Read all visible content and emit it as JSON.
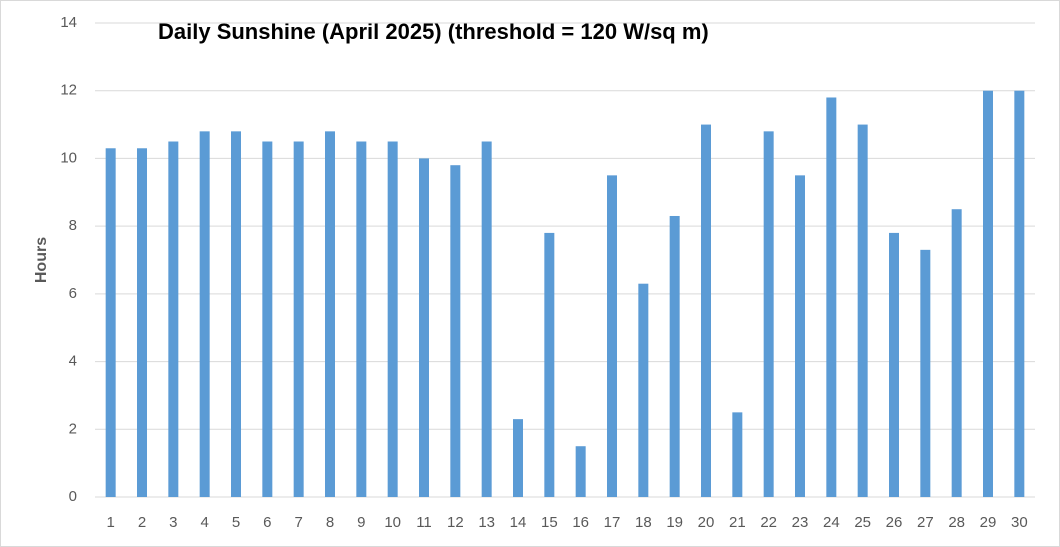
{
  "chart_data": {
    "type": "bar",
    "title": "Daily Sunshine (April 2025) (threshold = 120 W/sq m)",
    "y_label": "Hours",
    "categories": [
      "1",
      "2",
      "3",
      "4",
      "5",
      "6",
      "7",
      "8",
      "9",
      "10",
      "11",
      "12",
      "13",
      "14",
      "15",
      "16",
      "17",
      "18",
      "19",
      "20",
      "21",
      "22",
      "23",
      "24",
      "25",
      "26",
      "27",
      "28",
      "29",
      "30"
    ],
    "values": [
      10.3,
      10.3,
      10.5,
      10.8,
      10.8,
      10.5,
      10.5,
      10.8,
      10.5,
      10.5,
      10.0,
      9.8,
      10.5,
      2.3,
      7.8,
      1.5,
      9.5,
      6.3,
      8.3,
      11.0,
      2.5,
      10.8,
      9.5,
      11.8,
      11.0,
      7.8,
      7.3,
      8.5,
      12.0,
      12.0
    ],
    "color": "#5b9bd5",
    "ylim": [
      0,
      14
    ],
    "yticks": [
      0,
      2,
      4,
      6,
      8,
      10,
      12,
      14
    ],
    "grid": true
  }
}
